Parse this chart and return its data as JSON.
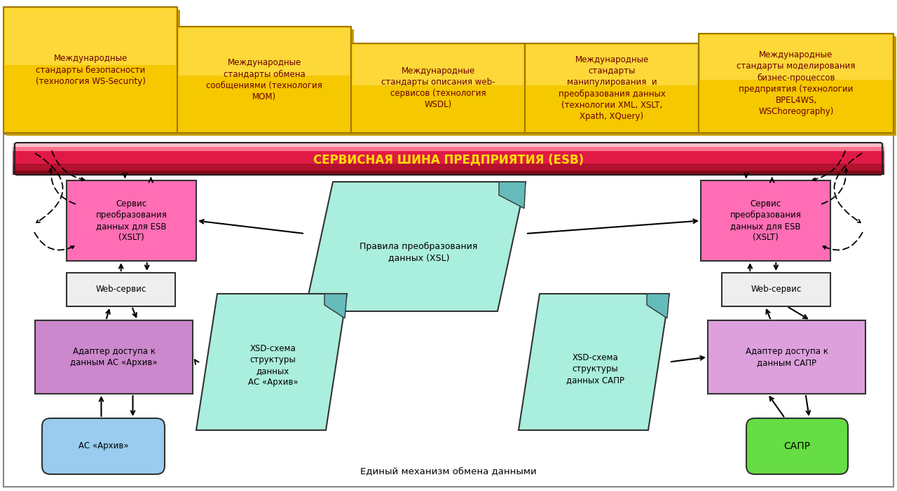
{
  "esb_text": "СЕРВИСНАЯ ШИНА ПРЕДПРИЯТИЯ (ESB)",
  "bottom_text": "Единый механизм обмена данными",
  "tab_texts": [
    "Международные\nстандарты безопасности\n(технология WS-Security)",
    "Международные\nстандарты обмена\nсообщениями (технология\nMOM)",
    "Международные\nстандарты описания web-\nсервисов (технология\nWSDL)",
    "Международные\nстандарты\nманипулирования  и\nпреобразования данных\n(технологии XML, XSLT,\nXpath, XQuery)",
    "Международные\nстандарты моделирования\nбизнес-процессов\nпредприятия (технологии\nBPEL4WS,\nWSChoreography)"
  ],
  "tab_gold": "#F5C800",
  "tab_gold_light": "#FFE050",
  "tab_gold_shadow": "#C89B00",
  "tab_border": "#A07800",
  "tab_text_color": "#6B0000",
  "esb_text_color": "#FFE000",
  "main_bg": "#ffffff",
  "main_border": "#888888",
  "pink": "#FF6EB4",
  "purple": "#CC88CC",
  "light_purple": "#DDA0DD",
  "cyan": "#AAEEDD",
  "cyan_dark": "#66BBBB",
  "blue_light": "#99CCEE",
  "green": "#66DD44",
  "white": "#ffffff",
  "black": "#000000",
  "gray": "#555555"
}
